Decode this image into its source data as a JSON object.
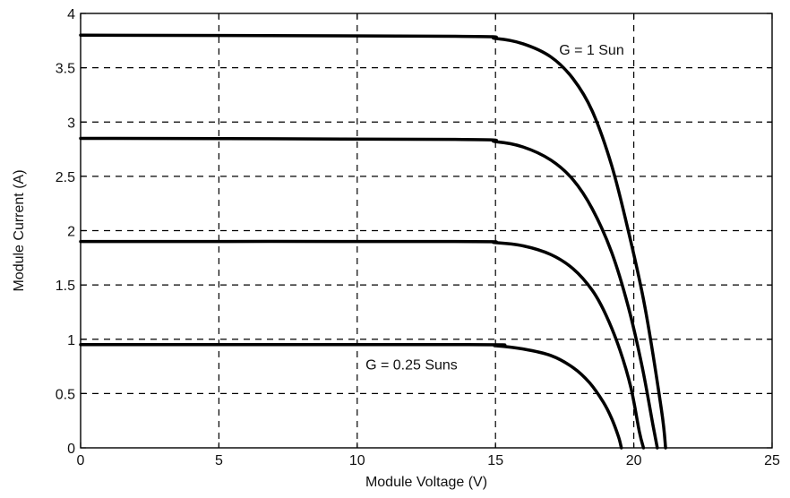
{
  "chart_data": {
    "type": "line",
    "title": "",
    "xlabel": "Module Voltage (V)",
    "ylabel": "Module Current (A)",
    "xlim": [
      0,
      25
    ],
    "ylim": [
      0,
      4
    ],
    "x_ticks": [
      0,
      5,
      10,
      15,
      20,
      25
    ],
    "y_ticks": [
      0,
      0.5,
      1,
      1.5,
      2,
      2.5,
      3,
      3.5,
      4
    ],
    "x_tick_labels": [
      "0",
      "5",
      "10",
      "15",
      "20",
      "25"
    ],
    "y_tick_labels": [
      "0",
      "0.5",
      "1",
      "1.5",
      "2",
      "2.5",
      "3",
      "3.5",
      "4"
    ],
    "grid": true,
    "legend": "none",
    "annotations": [
      {
        "text": "G = 1 Sun",
        "x": 17.3,
        "y": 3.62
      },
      {
        "text": "G = 0.25 Suns",
        "x": 10.3,
        "y": 0.72
      }
    ],
    "series": [
      {
        "color": "#000000",
        "x": [
          0,
          13.5,
          15.0,
          16.0,
          17.0,
          17.8,
          18.5,
          19.2,
          19.8,
          20.4,
          21.0,
          21.15
        ],
        "y": [
          3.8,
          3.79,
          3.77,
          3.72,
          3.6,
          3.4,
          3.1,
          2.6,
          2.0,
          1.3,
          0.35,
          0
        ]
      },
      {
        "color": "#000000",
        "x": [
          0,
          13.5,
          15.0,
          16.0,
          17.0,
          17.8,
          18.5,
          19.2,
          19.8,
          20.3,
          20.7,
          20.85
        ],
        "y": [
          2.85,
          2.84,
          2.82,
          2.77,
          2.65,
          2.47,
          2.2,
          1.8,
          1.3,
          0.75,
          0.2,
          0
        ]
      },
      {
        "color": "#000000",
        "x": [
          0,
          13.5,
          15.0,
          16.0,
          17.0,
          17.8,
          18.5,
          19.0,
          19.5,
          19.9,
          20.2,
          20.35
        ],
        "y": [
          1.9,
          1.9,
          1.89,
          1.86,
          1.78,
          1.65,
          1.45,
          1.22,
          0.9,
          0.55,
          0.15,
          0
        ]
      },
      {
        "color": "#000000",
        "x": [
          0,
          14.0,
          15.0,
          16.0,
          17.0,
          17.8,
          18.4,
          18.9,
          19.2,
          19.45,
          19.55
        ],
        "y": [
          0.95,
          0.95,
          0.94,
          0.91,
          0.85,
          0.74,
          0.6,
          0.42,
          0.27,
          0.1,
          0
        ]
      }
    ]
  }
}
